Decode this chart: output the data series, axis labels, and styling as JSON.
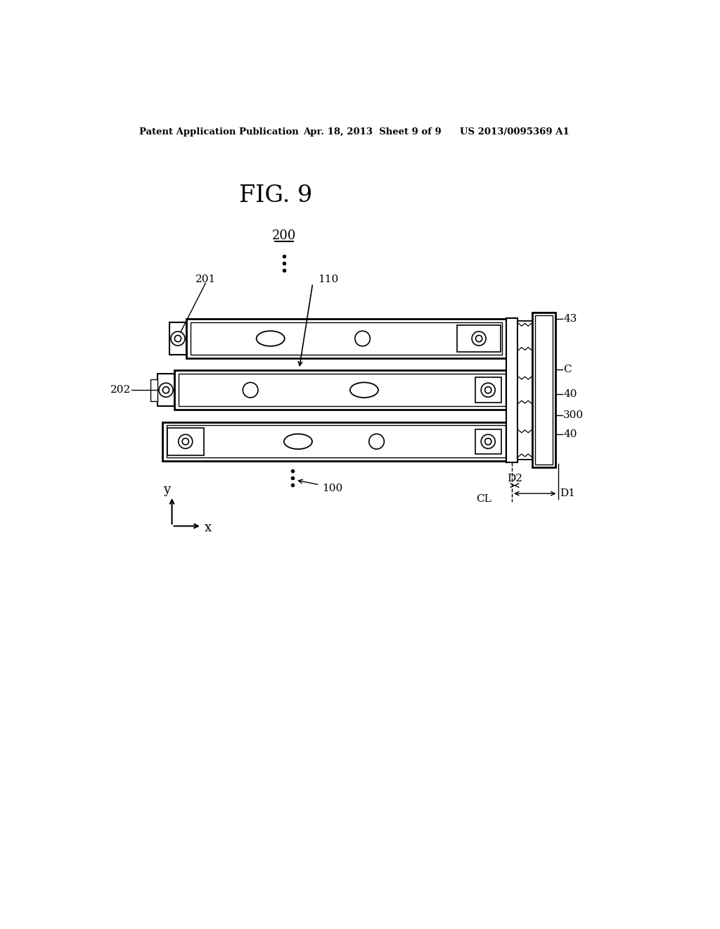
{
  "bg_color": "#ffffff",
  "line_color": "#000000",
  "fig_title": "FIG. 9",
  "header_left": "Patent Application Publication",
  "header_center": "Apr. 18, 2013  Sheet 9 of 9",
  "header_right": "US 2013/0095369 A1",
  "label_200": "200",
  "label_201": "201",
  "label_202": "202",
  "label_110": "110",
  "label_100": "100",
  "label_43": "43",
  "label_C": "C",
  "label_40a": "40",
  "label_300": "300",
  "label_40b": "40",
  "label_CL": "CL",
  "label_D2": "D2",
  "label_D1": "D1"
}
